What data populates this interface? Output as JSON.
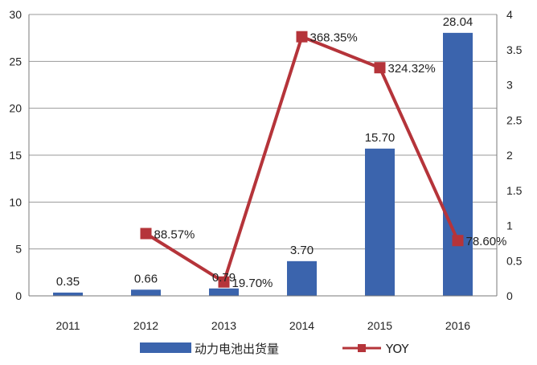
{
  "chart_data": {
    "type": "bar+line",
    "categories": [
      "2011",
      "2012",
      "2013",
      "2014",
      "2015",
      "2016"
    ],
    "series": [
      {
        "name": "动力电池出货量",
        "type": "bar",
        "axis": "left",
        "values": [
          0.35,
          0.66,
          0.79,
          3.7,
          15.7,
          28.04
        ],
        "labels": [
          "0.35",
          "0.66",
          "0.79",
          "3.70",
          "15.70",
          "28.04"
        ],
        "color": "#3b64ad"
      },
      {
        "name": "YOY",
        "type": "line",
        "axis": "right",
        "values": [
          null,
          0.8857,
          0.197,
          3.6835,
          3.2432,
          0.786
        ],
        "labels": [
          null,
          "88.57%",
          "19.70%",
          "368.35%",
          "324.32%",
          "78.60%"
        ],
        "color": "#b5343a"
      }
    ],
    "y_left": {
      "ylim": [
        0,
        30
      ],
      "ticks": [
        0,
        5,
        10,
        15,
        20,
        25,
        30
      ]
    },
    "y_right": {
      "ylim": [
        0,
        4
      ],
      "ticks": [
        "0",
        "0.5",
        "1",
        "1.5",
        "2",
        "2.5",
        "3",
        "3.5",
        "4"
      ]
    },
    "grid": true,
    "legend_position": "bottom"
  }
}
